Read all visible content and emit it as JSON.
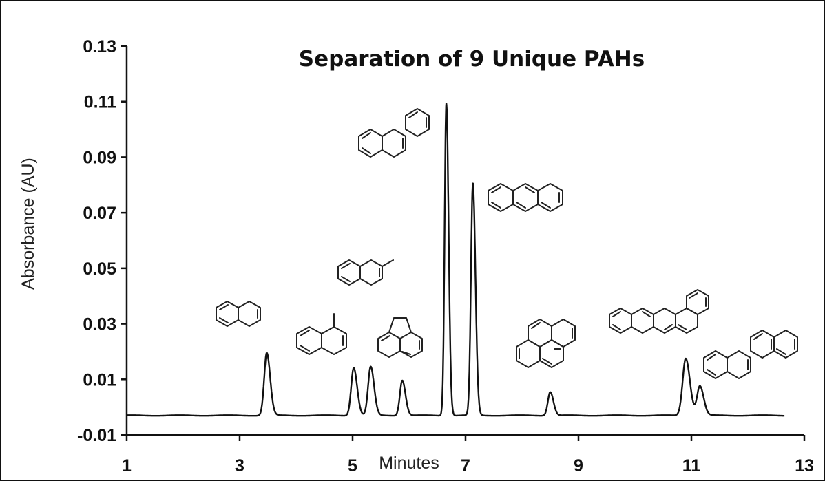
{
  "chart_data": {
    "type": "line",
    "title": "Separation of 9 Unique PAHs",
    "xlabel": "Minutes",
    "ylabel": "Absorbance (AU)",
    "xlim": [
      1,
      13
    ],
    "ylim": [
      -0.01,
      0.13
    ],
    "x_ticks": [
      "1",
      "3",
      "5",
      "7",
      "9",
      "11",
      "13"
    ],
    "y_ticks": [
      "0.13",
      "0.11",
      "0.09",
      "0.07",
      "0.05",
      "0.03",
      "0.01",
      "-0.01"
    ],
    "grid": false,
    "legend": "none",
    "baseline": -0.003,
    "x_range": [
      1.0,
      12.65
    ],
    "peaks": [
      {
        "x": 3.48,
        "y": 0.0195
      },
      {
        "x": 5.02,
        "y": 0.0142
      },
      {
        "x": 5.32,
        "y": 0.0145
      },
      {
        "x": 5.88,
        "y": 0.0097
      },
      {
        "x": 6.66,
        "y": 0.1095
      },
      {
        "x": 7.13,
        "y": 0.0805
      },
      {
        "x": 8.5,
        "y": 0.0055
      },
      {
        "x": 10.9,
        "y": 0.0176
      },
      {
        "x": 11.15,
        "y": 0.0076
      }
    ],
    "line_color": "#111111"
  }
}
